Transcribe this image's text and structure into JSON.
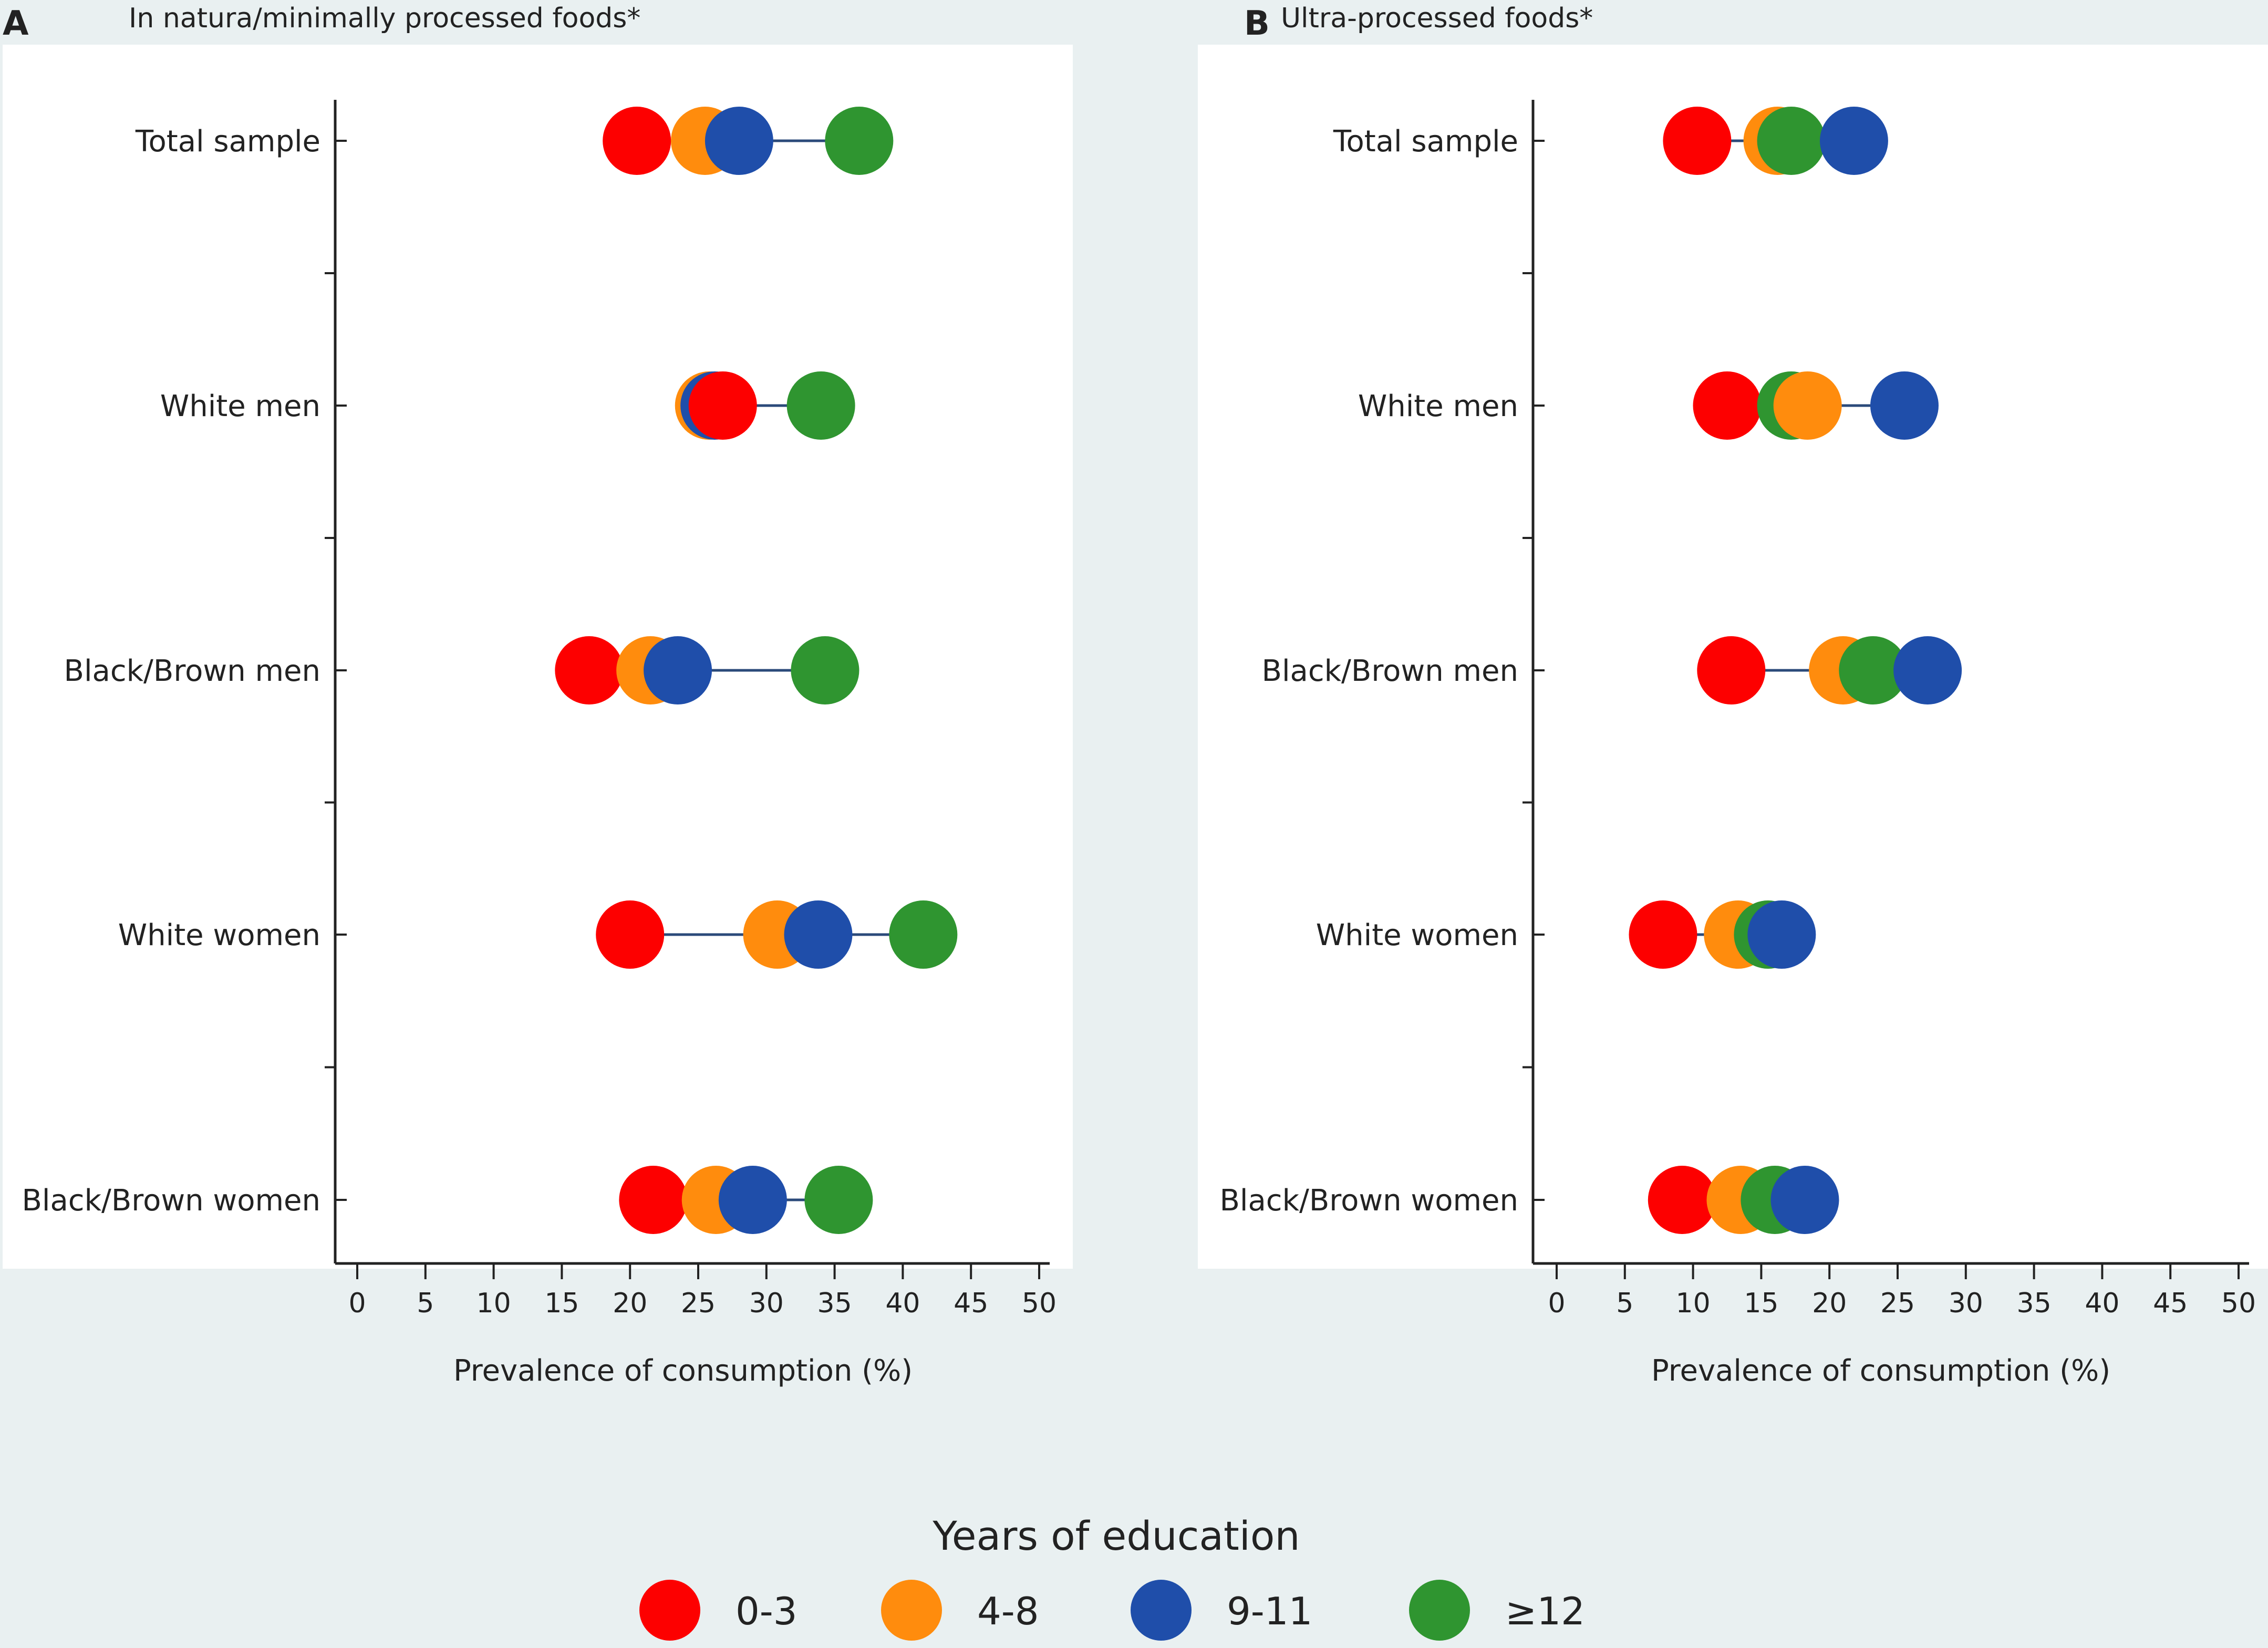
{
  "colors": {
    "background": "#e9f0f1",
    "plot_bg": "#ffffff",
    "axis": "#222222",
    "connector": "#2b4a7a"
  },
  "chart_data": [
    {
      "type": "dumbbell",
      "panel_label": "A",
      "title": "In natura/minimally processed foods*",
      "xlabel": "Prevalence of consumption (%)",
      "ylabel": "",
      "xlim": [
        0,
        50
      ],
      "x_ticks": [
        "0",
        "5",
        "10",
        "15",
        "20",
        "25",
        "30",
        "35",
        "40",
        "45",
        "50"
      ],
      "categories": [
        "Total sample",
        "White men",
        "Black/Brown men",
        "White women",
        "Black/Brown women"
      ],
      "series": [
        {
          "name": "0-3",
          "color": "#fd0000",
          "values": [
            20.5,
            26.8,
            17.0,
            20.0,
            21.7
          ]
        },
        {
          "name": "4-8",
          "color": "#ff8c0d",
          "values": [
            25.5,
            25.8,
            21.5,
            30.8,
            26.3
          ]
        },
        {
          "name": "9-11",
          "color": "#1f4eaa",
          "values": [
            28.0,
            26.2,
            23.5,
            33.8,
            29.0
          ]
        },
        {
          "name": "≥12",
          "color": "#2f9530",
          "values": [
            36.8,
            34.0,
            34.3,
            41.5,
            35.3
          ]
        }
      ]
    },
    {
      "type": "dumbbell",
      "panel_label": "B",
      "title": "Ultra-processed foods*",
      "xlabel": "Prevalence of consumption (%)",
      "ylabel": "",
      "xlim": [
        0,
        50
      ],
      "x_ticks": [
        "0",
        "5",
        "10",
        "15",
        "20",
        "25",
        "30",
        "35",
        "40",
        "45",
        "50"
      ],
      "categories": [
        "Total sample",
        "White men",
        "Black/Brown men",
        "White women",
        "Black/Brown women"
      ],
      "series": [
        {
          "name": "0-3",
          "color": "#fd0000",
          "values": [
            10.3,
            12.5,
            12.8,
            7.8,
            9.2
          ]
        },
        {
          "name": "4-8",
          "color": "#ff8c0d",
          "values": [
            16.2,
            18.4,
            21.0,
            13.3,
            13.5
          ]
        },
        {
          "name": "9-11",
          "color": "#1f4eaa",
          "values": [
            21.8,
            25.5,
            27.2,
            16.5,
            18.2
          ]
        },
        {
          "name": "≥12",
          "color": "#2f9530",
          "values": [
            17.2,
            17.2,
            23.2,
            15.5,
            16.0
          ]
        }
      ]
    }
  ],
  "legend": {
    "title": "Years of education",
    "items": [
      {
        "label": "0-3",
        "color": "#fd0000"
      },
      {
        "label": "4-8",
        "color": "#ff8c0d"
      },
      {
        "label": "9-11",
        "color": "#1f4eaa"
      },
      {
        "label": "≥12",
        "color": "#2f9530"
      }
    ]
  }
}
